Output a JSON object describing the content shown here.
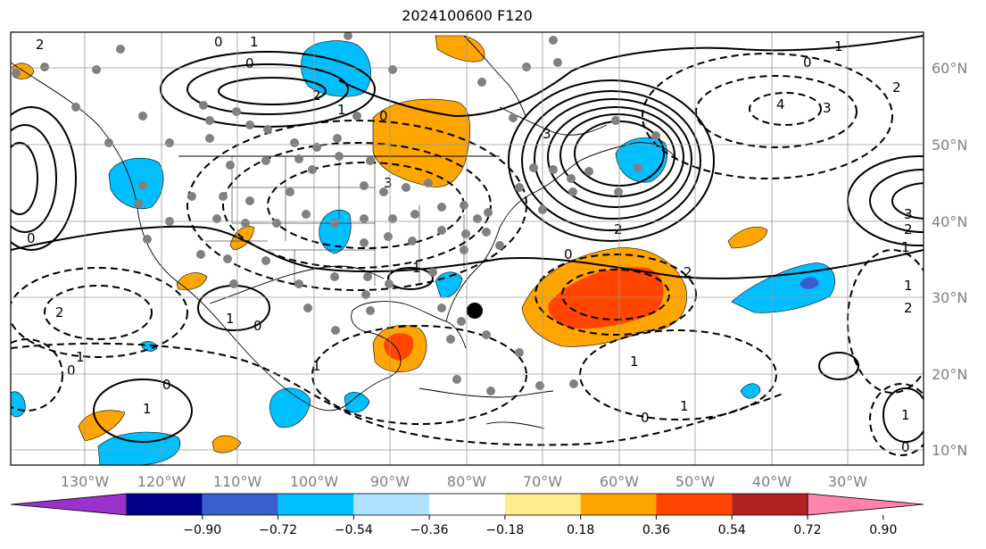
{
  "title": "2024100600 F120",
  "axes": {
    "lon_labels": [
      "130°W",
      "120°W",
      "110°W",
      "100°W",
      "90°W",
      "80°W",
      "70°W",
      "60°W",
      "50°W",
      "40°W",
      "30°W"
    ],
    "lat_labels": [
      "60°N",
      "50°N",
      "40°N",
      "30°N",
      "20°N",
      "10°N"
    ]
  },
  "colorbar": {
    "ticks": [
      "−0.90",
      "−0.72",
      "−0.54",
      "−0.36",
      "−0.18",
      "0.18",
      "0.36",
      "0.54",
      "0.72",
      "0.90"
    ],
    "colors": [
      "#9932cc",
      "#00008b",
      "#3a5fcd",
      "#00bfff",
      "#b0e2ff",
      "#ffffff",
      "#ffec8b",
      "#ffa500",
      "#ff4500",
      "#b22222",
      "#ff82ab"
    ]
  },
  "contour_labels": [
    "0",
    "1",
    "2",
    "0",
    "2",
    "1",
    "0",
    "3",
    "4",
    "3",
    "2",
    "0",
    "1",
    "2",
    "3",
    "1",
    "2",
    "1",
    "0",
    "1",
    "0",
    "1",
    "1",
    "0",
    "2",
    "0",
    "0",
    "1",
    "1",
    "1",
    "0",
    "1",
    "0",
    "2",
    "3",
    "1",
    "2"
  ],
  "marker": {
    "name": "black-dot"
  }
}
